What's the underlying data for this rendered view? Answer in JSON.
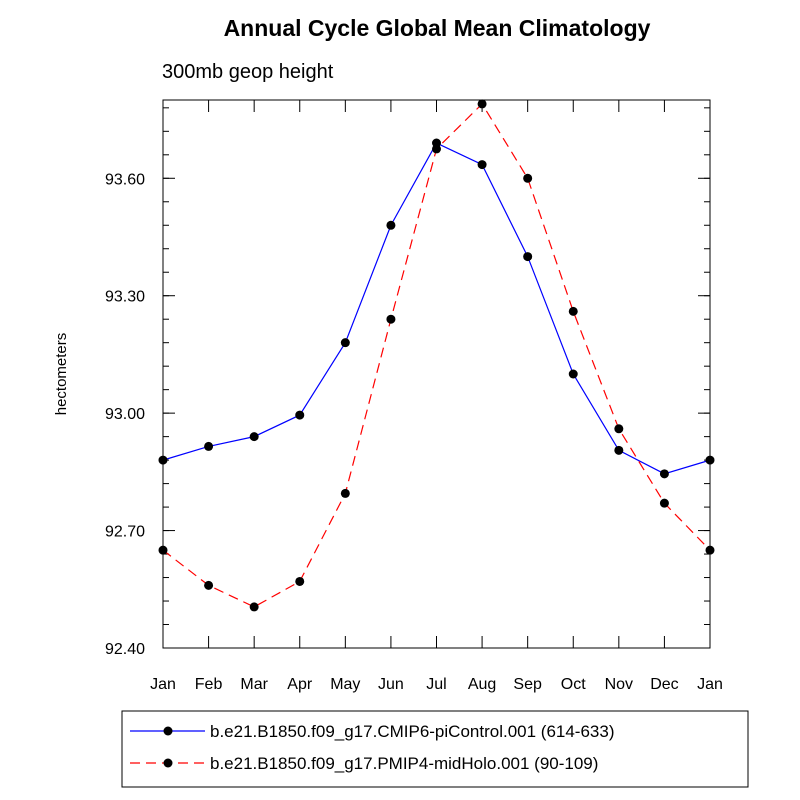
{
  "chart_data": {
    "type": "line",
    "title": "Annual Cycle Global Mean Climatology",
    "subtitle": "300mb geop height",
    "xlabel": "",
    "ylabel": "hectometers",
    "categories": [
      "Jan",
      "Feb",
      "Mar",
      "Apr",
      "May",
      "Jun",
      "Jul",
      "Aug",
      "Sep",
      "Oct",
      "Nov",
      "Dec",
      "Jan"
    ],
    "ylim": [
      92.4,
      93.8
    ],
    "yticks": [
      92.4,
      92.7,
      93.0,
      93.3,
      93.6
    ],
    "ytick_labels": [
      "92.40",
      "92.70",
      "93.00",
      "93.30",
      "93.60"
    ],
    "grid": false,
    "legend_position": "bottom",
    "series": [
      {
        "name": "b.e21.B1850.f09_g17.CMIP6-piControl.001 (614-633)",
        "color": "#0000ff",
        "dash": "solid",
        "values": [
          92.88,
          92.915,
          92.94,
          92.995,
          93.18,
          93.48,
          93.69,
          93.635,
          93.4,
          93.1,
          92.905,
          92.845,
          92.88
        ]
      },
      {
        "name": "b.e21.B1850.f09_g17.PMIP4-midHolo.001 (90-109)",
        "color": "#ff0000",
        "dash": "dashed",
        "values": [
          92.65,
          92.56,
          92.505,
          92.57,
          92.795,
          93.24,
          93.675,
          93.79,
          93.6,
          93.26,
          92.96,
          92.77,
          92.65
        ]
      }
    ]
  }
}
